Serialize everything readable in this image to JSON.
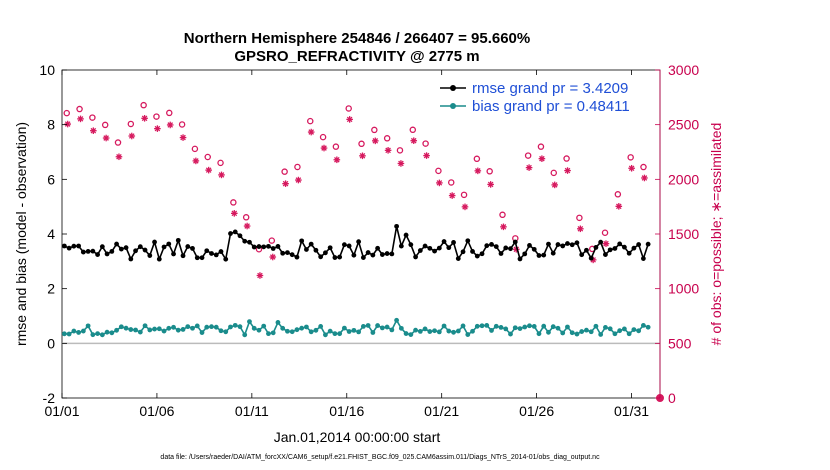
{
  "chart_data": {
    "type": "line",
    "title_line1": "Northern Hemisphere 254846 / 266407 = 95.660%",
    "title_line2": "GPSRO_REFRACTIVITY @ 2775 m",
    "xlabel": "Jan.01,2014 00:00:00 start",
    "ylabel": "rmse and bias (model - observation)",
    "y2label": "# of obs: o=possible; ∗=assimilated",
    "footnote": "data file: /Users/raeder/DAI/ATM_forcXX/CAM6_setup/f.e21.FHIST_BGC.f09_025.CAM6assim.011/Diags_NTrS_2014-01/obs_diag_output.nc",
    "xlim": [
      0,
      31.5
    ],
    "ylim": [
      -2,
      10
    ],
    "y2lim": [
      0,
      3000
    ],
    "x_ticks": [
      0,
      5,
      10,
      15,
      20,
      25,
      30
    ],
    "x_tick_labels": [
      "01/01",
      "01/06",
      "01/11",
      "01/16",
      "01/21",
      "01/26",
      "01/31"
    ],
    "y_ticks": [
      -2,
      0,
      2,
      4,
      6,
      8,
      10
    ],
    "y_tick_labels": [
      "-2",
      "0",
      "2",
      "4",
      "6",
      "8",
      "10"
    ],
    "y2_ticks": [
      0,
      500,
      1000,
      1500,
      2000,
      2500,
      3000
    ],
    "y2_tick_labels": [
      "0",
      "500",
      "1000",
      "1500",
      "2000",
      "2500",
      "3000"
    ],
    "zero_line": 0,
    "legend": [
      {
        "label": "rmse grand pr = 3.4209",
        "color": "#000000"
      },
      {
        "label": "bias grand pr = 0.48411",
        "color": "#1a8c8c"
      }
    ],
    "colors": {
      "rmse": "#000000",
      "bias": "#1a8c8c",
      "obs": "#d6195e",
      "zero": "#bbbbbb"
    },
    "obs_count_range_points": {
      "possible_sample": [
        2600,
        2650,
        2560,
        2480,
        2330,
        2500,
        2690,
        2560,
        2600,
        2490,
        2270,
        2210,
        2140,
        1800,
        1650,
        1370,
        1450,
        2060,
        2100,
        2520,
        2400,
        2300,
        2640,
        2330,
        2460,
        2380,
        2250,
        2440,
        2330,
        2080,
        1960,
        1870,
        2200,
        2080,
        1680,
        1460,
        2200,
        2300,
        2050,
        2200,
        1650,
        1350,
        1500,
        1870,
        2200,
        2100
      ],
      "assimilated_sample": [
        2500,
        2560,
        2440,
        2360,
        2200,
        2390,
        2570,
        2450,
        2490,
        2370,
        2160,
        2090,
        2030,
        1700,
        1570,
        1130,
        1300,
        1950,
        1980,
        2420,
        2300,
        2180,
        2540,
        2220,
        2360,
        2270,
        2130,
        2340,
        2220,
        1970,
        1840,
        1760,
        2090,
        1960,
        1570,
        1360,
        2090,
        2190,
        1940,
        2090,
        1550,
        1250,
        1400,
        1760,
        2100,
        2000
      ]
    },
    "series_rmse_mean": 3.4209,
    "series_bias_mean": 0.48411,
    "last_obs_marker": {
      "x": 31.5,
      "y2": 0
    }
  }
}
